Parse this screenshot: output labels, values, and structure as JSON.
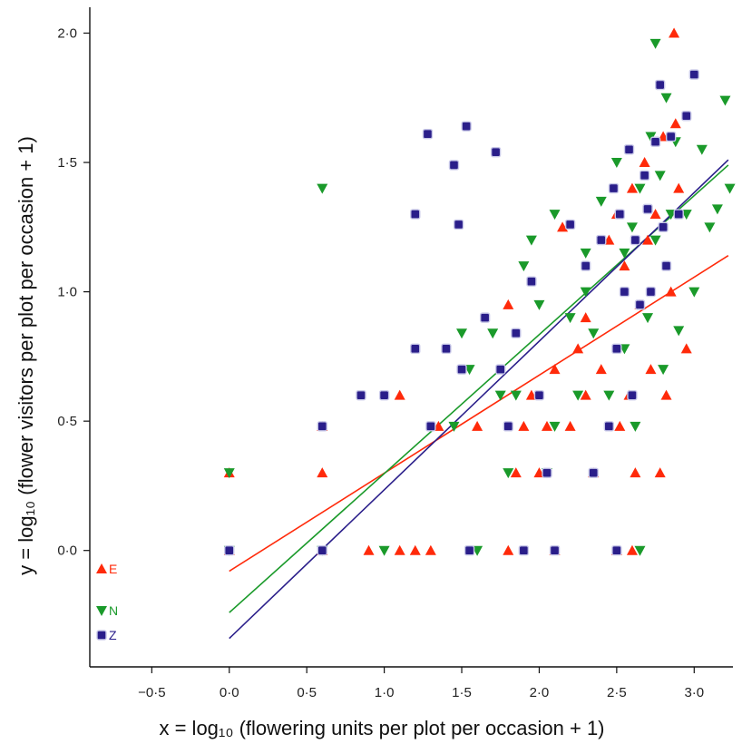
{
  "chart_data": {
    "type": "scatter",
    "xlabel": "x = log₁₀ (flowering units per plot per occasion + 1)",
    "ylabel": "y = log₁₀ (flower visitors per plot per occasion + 1)",
    "xlim": [
      -0.9,
      3.25
    ],
    "ylim": [
      -0.45,
      2.1
    ],
    "x_ticks": [
      -0.5,
      0.0,
      0.5,
      1.0,
      1.5,
      2.0,
      2.5,
      3.0
    ],
    "x_tick_labels": [
      "−0·5",
      "0·0",
      "0·5",
      "1·0",
      "1·5",
      "2·0",
      "2·5",
      "3·0"
    ],
    "y_ticks": [
      0.0,
      0.5,
      1.0,
      1.5,
      2.0
    ],
    "y_tick_labels": [
      "0·0",
      "0·5",
      "1·0",
      "1·5",
      "2·0"
    ],
    "grid": false,
    "legend_position": "bottom-left",
    "series": [
      {
        "name": "E",
        "color": "#ff2a0a",
        "marker": "triangle-up",
        "fit_line": {
          "x": [
            0.0,
            3.22
          ],
          "y": [
            -0.08,
            1.14
          ]
        },
        "points": [
          [
            0,
            0
          ],
          [
            0,
            0.3
          ],
          [
            0.6,
            0
          ],
          [
            0.6,
            0.3
          ],
          [
            0.6,
            0.48
          ],
          [
            0.9,
            0
          ],
          [
            1.1,
            0
          ],
          [
            1.1,
            0.6
          ],
          [
            1.2,
            0
          ],
          [
            1.3,
            0
          ],
          [
            1.35,
            0.48
          ],
          [
            1.6,
            0.48
          ],
          [
            1.8,
            0
          ],
          [
            1.85,
            0.3
          ],
          [
            1.9,
            0.48
          ],
          [
            1.95,
            0.6
          ],
          [
            2.0,
            0.3
          ],
          [
            2.05,
            0.48
          ],
          [
            2.1,
            0.7
          ],
          [
            2.1,
            0
          ],
          [
            2.15,
            1.25
          ],
          [
            2.2,
            0.48
          ],
          [
            2.25,
            0.78
          ],
          [
            2.3,
            0.9
          ],
          [
            2.35,
            0.3
          ],
          [
            2.4,
            0.7
          ],
          [
            2.5,
            0
          ],
          [
            2.5,
            1.3
          ],
          [
            2.52,
            0.48
          ],
          [
            2.55,
            1.1
          ],
          [
            2.58,
            0.6
          ],
          [
            2.6,
            1.4
          ],
          [
            2.62,
            0.3
          ],
          [
            2.65,
            0.95
          ],
          [
            2.68,
            1.5
          ],
          [
            2.7,
            1.2
          ],
          [
            2.72,
            0.7
          ],
          [
            2.75,
            1.3
          ],
          [
            2.78,
            0.3
          ],
          [
            2.8,
            1.6
          ],
          [
            2.82,
            0.6
          ],
          [
            2.85,
            1.0
          ],
          [
            2.87,
            2.0
          ],
          [
            2.88,
            1.65
          ],
          [
            2.9,
            1.4
          ],
          [
            2.95,
            0.78
          ],
          [
            1.8,
            0.95
          ],
          [
            2.3,
            0.6
          ],
          [
            2.45,
            1.2
          ],
          [
            2.6,
            0
          ]
        ]
      },
      {
        "name": "N",
        "color": "#1a9a2a",
        "marker": "triangle-down",
        "fit_line": {
          "x": [
            0.0,
            3.22
          ],
          "y": [
            -0.24,
            1.49
          ]
        },
        "points": [
          [
            0,
            0
          ],
          [
            0,
            0.3
          ],
          [
            0.6,
            1.4
          ],
          [
            0.6,
            0
          ],
          [
            1.0,
            0
          ],
          [
            1.45,
            0.48
          ],
          [
            1.5,
            0.84
          ],
          [
            1.55,
            0.7
          ],
          [
            1.6,
            0
          ],
          [
            1.7,
            0.84
          ],
          [
            1.75,
            0.6
          ],
          [
            1.8,
            0.3
          ],
          [
            1.9,
            1.1
          ],
          [
            1.95,
            1.2
          ],
          [
            2.0,
            0.95
          ],
          [
            2.1,
            1.3
          ],
          [
            2.1,
            0.48
          ],
          [
            2.2,
            0.9
          ],
          [
            2.25,
            0.6
          ],
          [
            2.3,
            1.15
          ],
          [
            2.35,
            0.84
          ],
          [
            2.4,
            1.35
          ],
          [
            2.45,
            0.6
          ],
          [
            2.5,
            1.5
          ],
          [
            2.55,
            0.78
          ],
          [
            2.6,
            1.25
          ],
          [
            2.62,
            0.48
          ],
          [
            2.65,
            1.4
          ],
          [
            2.7,
            0.9
          ],
          [
            2.72,
            1.6
          ],
          [
            2.75,
            1.2
          ],
          [
            2.78,
            1.45
          ],
          [
            2.8,
            0.7
          ],
          [
            2.82,
            1.75
          ],
          [
            2.85,
            1.3
          ],
          [
            2.88,
            1.58
          ],
          [
            2.9,
            0.85
          ],
          [
            2.95,
            1.3
          ],
          [
            3.0,
            1.0
          ],
          [
            3.05,
            1.55
          ],
          [
            3.1,
            1.25
          ],
          [
            3.15,
            1.32
          ],
          [
            3.2,
            1.74
          ],
          [
            3.23,
            1.4
          ],
          [
            2.75,
            1.96
          ],
          [
            1.85,
            0.6
          ],
          [
            2.05,
            0.3
          ],
          [
            2.3,
            1.0
          ],
          [
            2.55,
            1.15
          ],
          [
            2.65,
            0
          ]
        ]
      },
      {
        "name": "Z",
        "color": "#2a1e8a",
        "marker": "square",
        "fit_line": {
          "x": [
            0.0,
            3.22
          ],
          "y": [
            -0.34,
            1.51
          ]
        },
        "points": [
          [
            0,
            0
          ],
          [
            0.6,
            0
          ],
          [
            0.6,
            0.48
          ],
          [
            0.85,
            0.6
          ],
          [
            1.0,
            0.6
          ],
          [
            1.2,
            1.3
          ],
          [
            1.2,
            0.78
          ],
          [
            1.28,
            1.61
          ],
          [
            1.3,
            0.48
          ],
          [
            1.4,
            0.78
          ],
          [
            1.45,
            1.49
          ],
          [
            1.48,
            1.26
          ],
          [
            1.5,
            0.7
          ],
          [
            1.53,
            1.64
          ],
          [
            1.55,
            0
          ],
          [
            1.65,
            0.9
          ],
          [
            1.72,
            1.54
          ],
          [
            1.75,
            0.7
          ],
          [
            1.8,
            0.48
          ],
          [
            1.85,
            0.84
          ],
          [
            1.9,
            0
          ],
          [
            1.95,
            1.04
          ],
          [
            2.0,
            0.6
          ],
          [
            2.05,
            0.3
          ],
          [
            2.1,
            0
          ],
          [
            2.2,
            1.26
          ],
          [
            2.3,
            1.1
          ],
          [
            2.35,
            0.3
          ],
          [
            2.4,
            1.2
          ],
          [
            2.45,
            0.48
          ],
          [
            2.48,
            1.4
          ],
          [
            2.5,
            0.78
          ],
          [
            2.52,
            1.3
          ],
          [
            2.55,
            1.0
          ],
          [
            2.58,
            1.55
          ],
          [
            2.6,
            0.6
          ],
          [
            2.62,
            1.2
          ],
          [
            2.65,
            0.95
          ],
          [
            2.68,
            1.45
          ],
          [
            2.7,
            1.32
          ],
          [
            2.72,
            1.0
          ],
          [
            2.75,
            1.58
          ],
          [
            2.78,
            1.8
          ],
          [
            2.8,
            1.25
          ],
          [
            2.82,
            1.1
          ],
          [
            2.85,
            1.6
          ],
          [
            2.9,
            1.3
          ],
          [
            2.95,
            1.68
          ],
          [
            3.0,
            1.84
          ],
          [
            2.5,
            0
          ]
        ]
      }
    ]
  }
}
